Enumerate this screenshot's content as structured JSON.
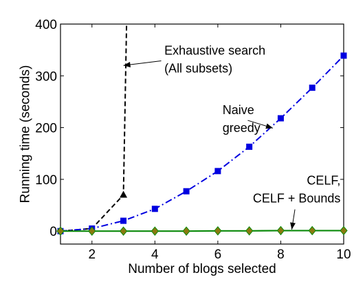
{
  "chart_data": {
    "type": "line",
    "xlabel": "Number of blogs selected",
    "ylabel": "Running time (seconds)",
    "xlim": [
      1,
      10
    ],
    "ylim": [
      -25,
      400
    ],
    "xticks": [
      2,
      4,
      6,
      8,
      10
    ],
    "yticks": [
      0,
      100,
      200,
      300,
      400
    ],
    "grid": false,
    "legend": "none",
    "series": [
      {
        "key": "exhaustive",
        "color": "#000000",
        "style": "dashed",
        "marker": "triangle",
        "x": [
          1,
          2,
          3,
          3.1
        ],
        "y": [
          0,
          5,
          70,
          400
        ],
        "marked_indices": [
          2
        ]
      },
      {
        "key": "naive",
        "color": "#0000e0",
        "style": "dashdot",
        "marker": "square",
        "x": [
          1,
          2,
          3,
          4,
          5,
          6,
          7,
          8,
          9,
          10
        ],
        "y": [
          0,
          5,
          20,
          43,
          77,
          116,
          163,
          218,
          277,
          339
        ]
      },
      {
        "key": "celf",
        "color": "#0a8a0a",
        "style": "solid",
        "marker": "diamond",
        "marker_color": "#8a7a10",
        "x": [
          1,
          2,
          3,
          4,
          5,
          6,
          7,
          8,
          9,
          10
        ],
        "y": [
          0,
          0,
          0,
          0,
          0,
          0.5,
          0.5,
          1,
          1,
          1
        ]
      }
    ],
    "annotations": [
      {
        "key": "exhaustive",
        "lines": [
          "Exhaustive search",
          "(All subsets)"
        ],
        "anchor": "start",
        "text_at": [
          4.3,
          341
        ],
        "line_spacing": 26,
        "arrow_from": [
          4.2,
          329
        ],
        "arrow_to": [
          3.0,
          320
        ]
      },
      {
        "key": "naive",
        "lines": [
          "Naive",
          "greedy"
        ],
        "anchor": "start",
        "text_at": [
          6.15,
          226
        ],
        "line_spacing": 26,
        "arrow_from": [
          6.95,
          214
        ],
        "arrow_to": [
          7.75,
          199
        ]
      },
      {
        "key": "celf",
        "lines": [
          "CELF,",
          "CELF + Bounds"
        ],
        "anchor": "end",
        "text_at": [
          9.9,
          90
        ],
        "line_spacing": 26,
        "arrow_from": [
          8.45,
          42
        ],
        "arrow_to": [
          8.35,
          3
        ]
      }
    ]
  }
}
